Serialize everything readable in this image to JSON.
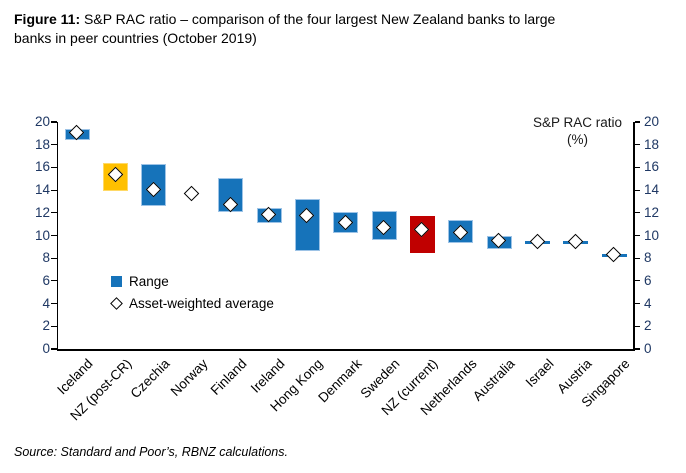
{
  "title": {
    "prefix": "Figure 11:",
    "line1_rest": " S&P RAC ratio – comparison of the four largest New Zealand banks to large",
    "line2": "banks in peer countries (October 2019)"
  },
  "axis_title": {
    "line1": "S&P RAC ratio",
    "line2": "(%)"
  },
  "legend": {
    "range_label": "Range",
    "average_label": "Asset-weighted average"
  },
  "source": "Source: Standard and Poor’s, RBNZ calculations.",
  "colors": {
    "blue": {
      "fill": "#1673BA",
      "border": "#9DC3E6"
    },
    "orange": {
      "fill": "#FFC000",
      "border": "#FFD966"
    },
    "red": {
      "fill": "#C00000",
      "border": "#C00000"
    },
    "axis_line": "#000000",
    "tick_label": "#1F3864"
  },
  "chart_data": {
    "type": "bar",
    "subtype": "floating-range-bars-with-average-markers",
    "title": "Figure 11: S&P RAC ratio – comparison of the four largest New Zealand banks to large banks in peer countries (October 2019)",
    "ylabel": "S&P RAC ratio (%)",
    "xlabel": "",
    "ylim": [
      0,
      20
    ],
    "ytick_step": 2,
    "grid": false,
    "legend_position": "inside-left",
    "categories": [
      "Iceland",
      "NZ (post-CR)",
      "Czechia",
      "Norway",
      "Finland",
      "Ireland",
      "Hong Kong",
      "Denmark",
      "Sweden",
      "NZ (current)",
      "Netherlands",
      "Australia",
      "Israel",
      "Austria",
      "Singapore"
    ],
    "bar_styles": [
      "blue",
      "orange",
      "blue",
      null,
      "blue",
      "blue",
      "blue",
      "blue",
      "blue",
      "red",
      "blue",
      "blue",
      "blue",
      "blue",
      "blue"
    ],
    "series": [
      {
        "name": "Range",
        "type": "floating-bar",
        "low": [
          18.4,
          13.9,
          12.6,
          null,
          12.1,
          11.1,
          8.6,
          10.2,
          9.6,
          8.5,
          9.3,
          8.8,
          9.3,
          9.3,
          8.2
        ],
        "high": [
          19.4,
          16.4,
          16.3,
          null,
          15.1,
          12.4,
          13.2,
          12.1,
          12.2,
          11.7,
          11.4,
          10.0,
          9.5,
          9.5,
          8.4
        ]
      },
      {
        "name": "Asset-weighted average",
        "type": "scatter",
        "marker": "diamond",
        "values": [
          19.0,
          15.3,
          14.0,
          13.7,
          12.7,
          11.8,
          11.7,
          11.1,
          10.7,
          10.5,
          10.2,
          9.5,
          9.4,
          9.4,
          8.3
        ]
      }
    ]
  }
}
